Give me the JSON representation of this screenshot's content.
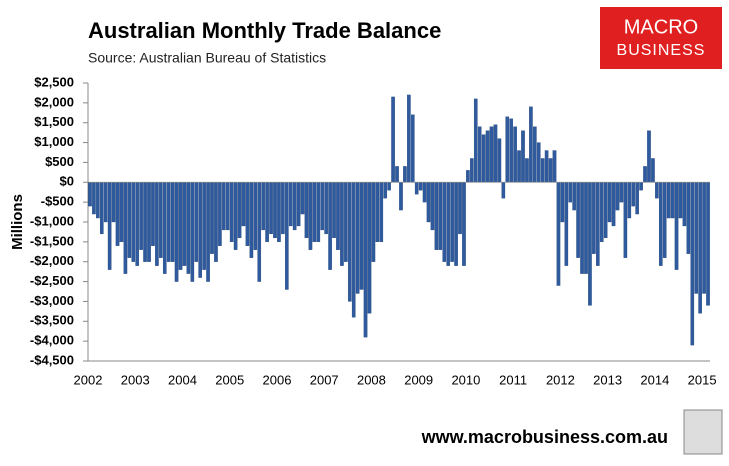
{
  "chart_data": {
    "type": "bar",
    "title": "Australian Monthly Trade Balance",
    "subtitle": "Source: Australian Bureau of Statistics",
    "y_label": "Millions",
    "logo": {
      "line1": "MACRO",
      "line2": "BUSINESS"
    },
    "footer": "www.macrobusiness.com.au",
    "color": "#2f5b9e",
    "ylim": [
      -4500,
      2500
    ],
    "yticks": [
      {
        "value": 2500,
        "label": "$2,500"
      },
      {
        "value": 2000,
        "label": "$2,000"
      },
      {
        "value": 1500,
        "label": "$1,500"
      },
      {
        "value": 1000,
        "label": "$1,000"
      },
      {
        "value": 500,
        "label": "$500"
      },
      {
        "value": 0,
        "label": "$0"
      },
      {
        "value": -500,
        "label": "-$500"
      },
      {
        "value": -1000,
        "label": "-$1,000"
      },
      {
        "value": -1500,
        "label": "-$1,500"
      },
      {
        "value": -2000,
        "label": "-$2,000"
      },
      {
        "value": -2500,
        "label": "-$2,500"
      },
      {
        "value": -3000,
        "label": "-$3,000"
      },
      {
        "value": -3500,
        "label": "-$3,500"
      },
      {
        "value": -4000,
        "label": "-$4,000"
      },
      {
        "value": -4500,
        "label": "-$4,500"
      }
    ],
    "categories": [
      "2002",
      null,
      null,
      null,
      null,
      null,
      null,
      null,
      null,
      null,
      null,
      null,
      "2003",
      null,
      null,
      null,
      null,
      null,
      null,
      null,
      null,
      null,
      null,
      null,
      "2004",
      null,
      null,
      null,
      null,
      null,
      null,
      null,
      null,
      null,
      null,
      null,
      "2005",
      null,
      null,
      null,
      null,
      null,
      null,
      null,
      null,
      null,
      null,
      null,
      "2006",
      null,
      null,
      null,
      null,
      null,
      null,
      null,
      null,
      null,
      null,
      null,
      "2007",
      null,
      null,
      null,
      null,
      null,
      null,
      null,
      null,
      null,
      null,
      null,
      "2008",
      null,
      null,
      null,
      null,
      null,
      null,
      null,
      null,
      null,
      null,
      null,
      "2009",
      null,
      null,
      null,
      null,
      null,
      null,
      null,
      null,
      null,
      null,
      null,
      "2010",
      null,
      null,
      null,
      null,
      null,
      null,
      null,
      null,
      null,
      null,
      null,
      "2011",
      null,
      null,
      null,
      null,
      null,
      null,
      null,
      null,
      null,
      null,
      null,
      "2012",
      null,
      null,
      null,
      null,
      null,
      null,
      null,
      null,
      null,
      null,
      null,
      "2013",
      null,
      null,
      null,
      null,
      null,
      null,
      null,
      null,
      null,
      null,
      null,
      "2014",
      null,
      null,
      null,
      null,
      null,
      null,
      null,
      null,
      null,
      null,
      null,
      "2015",
      null
    ],
    "values": [
      -600,
      -800,
      -900,
      -1300,
      -1000,
      -2200,
      -1000,
      -1600,
      -1500,
      -2300,
      -1900,
      -2000,
      -2100,
      -1700,
      -2000,
      -2000,
      -1600,
      -2100,
      -1900,
      -2300,
      -2000,
      -2000,
      -2500,
      -2200,
      -2100,
      -2300,
      -2500,
      -2000,
      -2400,
      -2200,
      -2500,
      -1800,
      -2000,
      -1600,
      -1200,
      -1200,
      -1500,
      -1700,
      -1400,
      -1100,
      -1600,
      -1900,
      -1700,
      -2500,
      -1200,
      -1500,
      -1300,
      -1400,
      -1500,
      -1300,
      -2700,
      -1100,
      -1200,
      -1100,
      -800,
      -1400,
      -1700,
      -1500,
      -1500,
      -1200,
      -1300,
      -2200,
      -1400,
      -1700,
      -2100,
      -2000,
      -3000,
      -3400,
      -2800,
      -2700,
      -3900,
      -3300,
      -2000,
      -1500,
      -1500,
      -400,
      -200,
      2150,
      400,
      -700,
      400,
      2200,
      1700,
      -300,
      -200,
      -500,
      -1000,
      -1200,
      -1700,
      -1700,
      -2000,
      -2100,
      -2000,
      -2100,
      -1300,
      -2100,
      300,
      600,
      2100,
      1400,
      1200,
      1300,
      1400,
      1450,
      1100,
      -400,
      1650,
      1600,
      1400,
      800,
      1300,
      600,
      1900,
      1400,
      1000,
      600,
      800,
      600,
      800,
      -2600,
      -1000,
      -2100,
      -500,
      -700,
      -1900,
      -2300,
      -2300,
      -3100,
      -1800,
      -2100,
      -1500,
      -1400,
      -1000,
      -1100,
      -700,
      -500,
      -1900,
      -900,
      -600,
      -800,
      -200,
      400,
      1300,
      600,
      -400,
      -2100,
      -1900,
      -900,
      -900,
      -2200,
      -900,
      -1100,
      -1800,
      -4100,
      -2800,
      -3300,
      -2800,
      -3100
    ]
  }
}
